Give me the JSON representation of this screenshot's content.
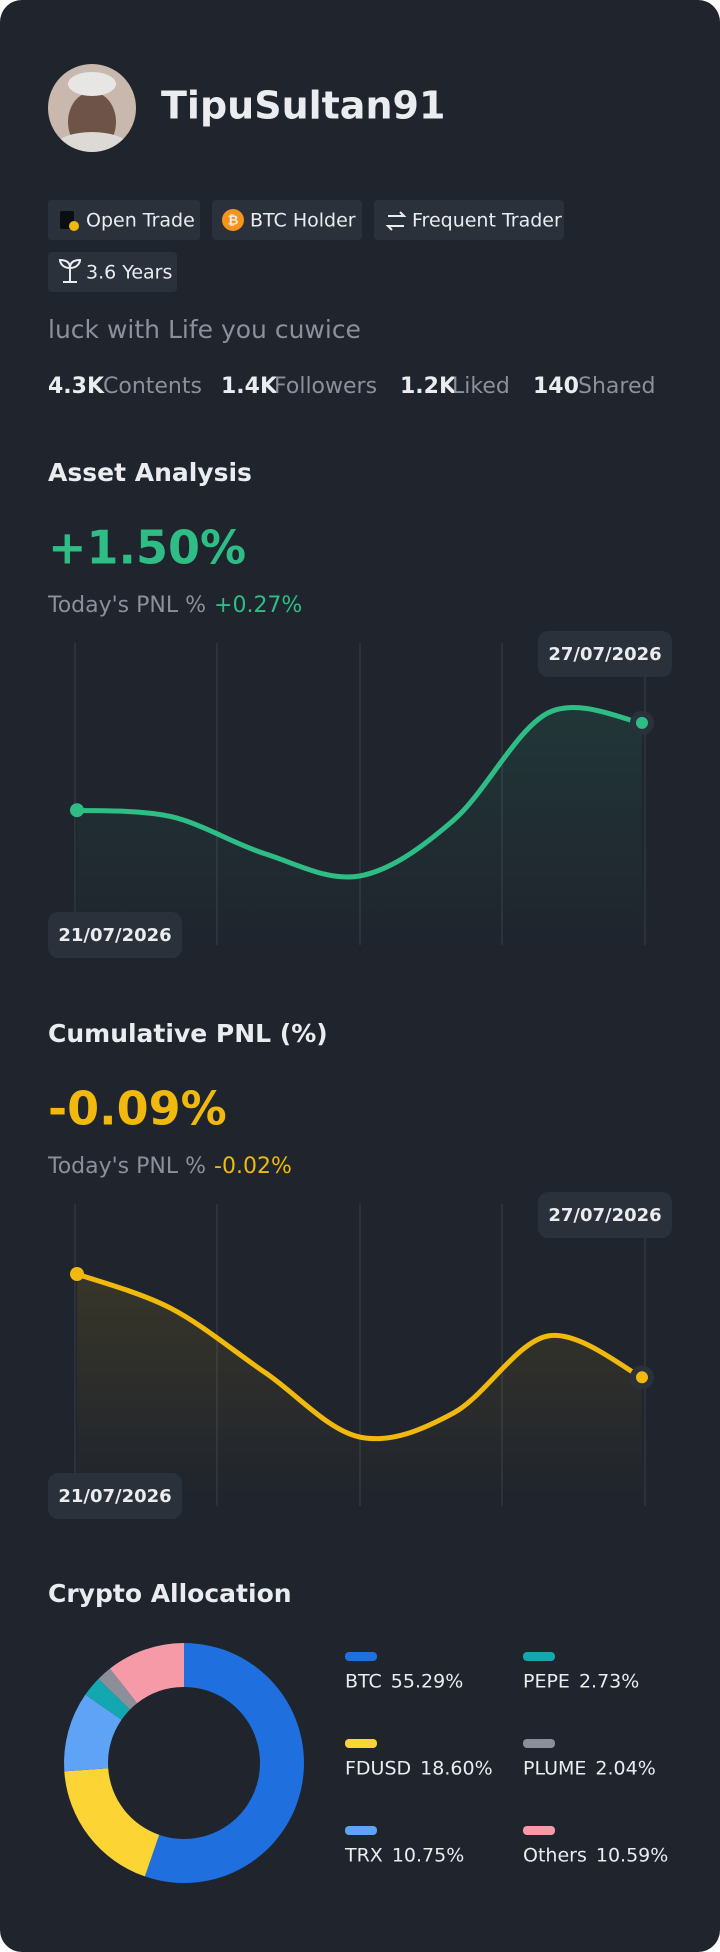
{
  "profile": {
    "username": "TipuSultan91",
    "badges": [
      "Open Trade",
      "BTC Holder",
      "Frequent Trader",
      "3.6 Years"
    ],
    "bio": "luck with Life you cuwice",
    "stats": [
      {
        "value": "4.3K",
        "label": "Contents"
      },
      {
        "value": "1.4K",
        "label": "Followers"
      },
      {
        "value": "1.2K",
        "label": "Liked"
      },
      {
        "value": "140",
        "label": "Shared"
      }
    ]
  },
  "chart_data": [
    {
      "type": "line",
      "title": "Asset Analysis",
      "headline": "+1.50%",
      "pnl_label": "Today's PNL %",
      "pnl_value": "+0.27%",
      "x": [
        "21/07/2026",
        null,
        null,
        null,
        null,
        null,
        "27/07/2026"
      ],
      "series": [
        {
          "color": "#2ebd85",
          "values": [
            0,
            -0.11,
            -0.75,
            -1.13,
            -0.17,
            1.67,
            1.5
          ]
        }
      ]
    },
    {
      "type": "line",
      "title": "Cumulative PNL (%)",
      "headline": "-0.09%",
      "pnl_label": "Today's PNL %",
      "pnl_value": "-0.02%",
      "x": [
        "21/07/2026",
        null,
        null,
        null,
        null,
        null,
        "27/07/2026"
      ],
      "series": [
        {
          "color": "#f0b90b",
          "values": [
            0,
            -0.03,
            -0.086,
            -0.142,
            -0.121,
            -0.054,
            -0.09
          ]
        }
      ]
    },
    {
      "type": "pie",
      "title": "Crypto Allocation",
      "categories": [
        "BTC",
        "FDUSD",
        "TRX",
        "PEPE",
        "PLUME",
        "Others"
      ],
      "values": [
        55.29,
        18.6,
        10.75,
        2.73,
        2.04,
        10.59
      ],
      "value_labels": [
        "55.29%",
        "18.60%",
        "10.75%",
        "2.73%",
        "2.04%",
        "10.59%"
      ],
      "colors": [
        "#1f6fde",
        "#fcd535",
        "#5ea3f5",
        "#13a8b0",
        "#8a8f99",
        "#f59aa6"
      ]
    }
  ]
}
